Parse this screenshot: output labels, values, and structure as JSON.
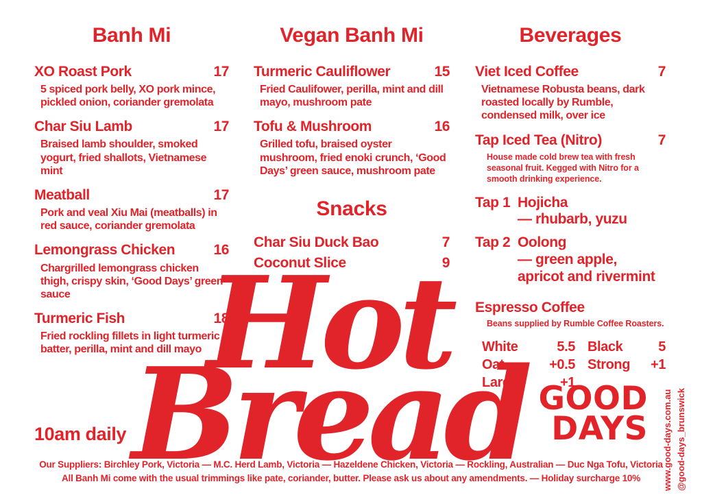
{
  "colors": {
    "accent": "#e1232a",
    "background": "#ffffff"
  },
  "hero": {
    "line1": "Hot",
    "line2": "Bread"
  },
  "hours": "10am daily",
  "brand": {
    "logo_line1": "GOOD",
    "logo_line2": "DAYS",
    "website": "www.good-days.com.au",
    "instagram": "@good-days_brunswick"
  },
  "sections": {
    "banh_mi": {
      "title": "Banh Mi",
      "items": [
        {
          "name": "XO Roast Pork",
          "price": "17",
          "desc": "5 spiced pork belly, XO pork mince, pickled onion, coriander gremolata"
        },
        {
          "name": "Char Siu Lamb",
          "price": "17",
          "desc": "Braised lamb shoulder, smoked yogurt, fried shallots, Vietnamese mint"
        },
        {
          "name": "Meatball",
          "price": "17",
          "desc": "Pork and veal Xiu Mai (meatballs) in red sauce, coriander gremolata"
        },
        {
          "name": "Lemongrass Chicken",
          "price": "16",
          "desc": "Chargrilled lemongrass chicken thigh, crispy skin, ‘Good Days’ green sauce"
        },
        {
          "name": "Turmeric Fish",
          "price": "18",
          "desc": "Fried rockling fillets in light turmeric batter, perilla, mint and dill mayo"
        }
      ]
    },
    "vegan_banh_mi": {
      "title": "Vegan Banh Mi",
      "items": [
        {
          "name": "Turmeric Cauliflower",
          "price": "15",
          "desc": "Fried Caulifower, perilla, mint and dill mayo, mushroom pate"
        },
        {
          "name": "Tofu & Mushroom",
          "price": "16",
          "desc": "Grilled tofu, braised oyster mushroom, fried enoki crunch, ‘Good Days’ green sauce, mushroom pate"
        }
      ]
    },
    "snacks": {
      "title": "Snacks",
      "items": [
        {
          "name": "Char Siu Duck Bao",
          "price": "7"
        },
        {
          "name": "Coconut Slice",
          "price": "9"
        }
      ]
    },
    "beverages": {
      "title": "Beverages",
      "items": [
        {
          "name": "Viet Iced Coffee",
          "price": "7",
          "desc": "Vietnamese Robusta beans, dark roasted locally by Rumble, condensed milk, over ice"
        },
        {
          "name": "Tap Iced Tea (Nitro)",
          "price": "7",
          "desc": "House made cold brew tea with fresh seasonal fruit. Kegged with Nitro for a smooth drinking experience."
        }
      ],
      "taps": [
        {
          "label": "Tap 1",
          "name": "Hojicha",
          "notes": "— rhubarb, yuzu"
        },
        {
          "label": "Tap 2",
          "name": "Oolong",
          "notes": "— green apple, apricot and rivermint"
        }
      ],
      "espresso": {
        "title": "Espresso Coffee",
        "subtitle": "Beans supplied by Rumble Coffee Roasters.",
        "price_columns": [
          {
            "rows": [
              {
                "label": "White",
                "price": "5.5"
              },
              {
                "label": "Oat",
                "price": "+0.5"
              },
              {
                "label": "Large",
                "price": "+1"
              }
            ]
          },
          {
            "rows": [
              {
                "label": "Black",
                "price": "5"
              },
              {
                "label": "Strong",
                "price": "+1"
              }
            ]
          }
        ]
      }
    }
  },
  "footer": {
    "line1": "Our Suppliers: Birchley Pork, Victoria — M.C. Herd Lamb, Victoria — Hazeldene Chicken, Victoria — Rockling, Australian — Duc Nga Tofu, Victoria",
    "line2": "All Banh Mi come with the usual trimmings like pate, coriander, butter. Please ask us about any amendments. — Holiday surcharge 10%"
  }
}
